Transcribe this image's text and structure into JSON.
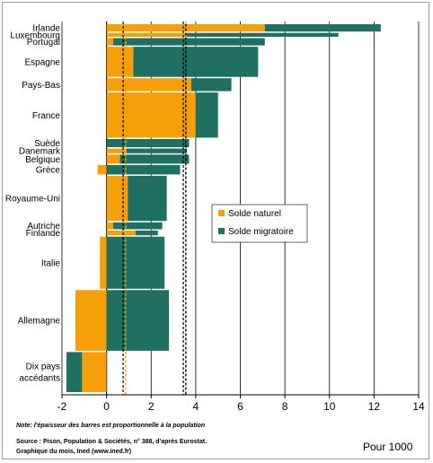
{
  "colors": {
    "naturel": "#f5a00a",
    "migratoire": "#1f6f63",
    "avg_naturel": "#f5a00a",
    "avg_total": "#000000"
  },
  "chart_data": {
    "type": "bar",
    "orientation": "horizontal",
    "stacked": true,
    "xlim": [
      -2,
      14
    ],
    "xticks": [
      -2,
      0,
      2,
      4,
      6,
      8,
      10,
      12,
      14
    ],
    "grid": "vertical",
    "unit_label": "Pour 1000",
    "legend": {
      "position": "center-right",
      "entries": [
        "Solde naturel",
        "Solde migratoire"
      ]
    },
    "categories": [
      "Irlande",
      "Luxembourg",
      "Portugal",
      "Espagne",
      "Pays-Bas",
      "France",
      "Suède",
      "Danemark",
      "Belgique",
      "Grèce",
      "Royaume-Uni",
      "Autriche",
      "Finlande",
      "Italie",
      "Allemagne",
      "Dix pays accédants"
    ],
    "category_labels": [
      [
        "Irlande"
      ],
      [
        "Luxembourg"
      ],
      [
        "Portugal"
      ],
      [
        "Espagne"
      ],
      [
        "Pays-Bas"
      ],
      [
        "France"
      ],
      [
        "Suède"
      ],
      [
        "Danemark"
      ],
      [
        "Belgique"
      ],
      [
        "Grèce"
      ],
      [
        "Royaume-Uni"
      ],
      [
        "Autriche"
      ],
      [
        "Finlande"
      ],
      [
        "Italie"
      ],
      [
        "Allemagne"
      ],
      [
        "Dix pays",
        "accédants"
      ]
    ],
    "bar_thickness_relative": [
      1.7,
      0.9,
      1.7,
      7.0,
      3.0,
      10.5,
      1.9,
      1.1,
      2.1,
      2.2,
      10.5,
      1.6,
      1.1,
      12.1,
      14.1,
      9.3
    ],
    "series": [
      {
        "name": "Solde naturel",
        "values": [
          7.1,
          3.6,
          0.3,
          1.2,
          3.8,
          4.0,
          0.0,
          0.9,
          0.6,
          -0.4,
          0.95,
          0.3,
          1.3,
          -0.3,
          -1.4,
          -1.1
        ]
      },
      {
        "name": "Solde migratoire",
        "values": [
          5.2,
          6.8,
          6.8,
          5.6,
          1.8,
          1.0,
          3.7,
          2.7,
          3.1,
          3.3,
          1.75,
          2.2,
          1.0,
          2.6,
          2.8,
          -0.7
        ]
      }
    ],
    "mean_lines": [
      {
        "series": "Solde naturel",
        "value": 0.8
      },
      {
        "series": "total",
        "value": 3.5
      }
    ],
    "annotations": [
      "Note: l'épaisseur des barres est proportionnelle à la population"
    ]
  },
  "footer": {
    "note": "Note: l'épaisseur des barres est proportionnelle à la population",
    "source": "Source : Pison, Population & Sociétés, n° 388, d'après Eurostat.",
    "credit": "Graphique du mois, Ined (www.ined.fr)"
  }
}
